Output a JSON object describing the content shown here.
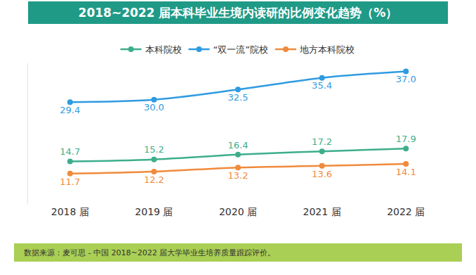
{
  "chart_data": {
    "type": "line",
    "title": "2018~2022 届本科毕业生境内读研的比例变化趋势（%）",
    "categories": [
      "2018 届",
      "2019 届",
      "2020 届",
      "2021 届",
      "2022 届"
    ],
    "series": [
      {
        "name": "本科院校",
        "color": "#3dae8c",
        "values": [
          14.7,
          15.2,
          16.4,
          17.2,
          17.9
        ],
        "value_labels": [
          "14.7",
          "15.2",
          "16.4",
          "17.2",
          "17.9"
        ]
      },
      {
        "name": "“双一流”院校",
        "color": "#2f9be0",
        "values": [
          29.4,
          30.0,
          32.5,
          35.4,
          37.0
        ],
        "value_labels": [
          "29.4",
          "30.0",
          "32.5",
          "35.4",
          "37.0"
        ]
      },
      {
        "name": "地方本科院校",
        "color": "#f08a3c",
        "values": [
          11.7,
          12.2,
          13.2,
          13.6,
          14.1
        ],
        "value_labels": [
          "11.7",
          "12.2",
          "13.2",
          "13.6",
          "14.1"
        ]
      }
    ],
    "ylim": [
      4,
      39
    ],
    "yticks": [],
    "grid": false,
    "legend": "top",
    "data_labels": true,
    "tick_labels": "x",
    "marker": "circle",
    "annotations": [
      "数据来源：麦可思 - 中国 2018~2022 届大学毕业生培养质量跟踪评价。"
    ]
  }
}
